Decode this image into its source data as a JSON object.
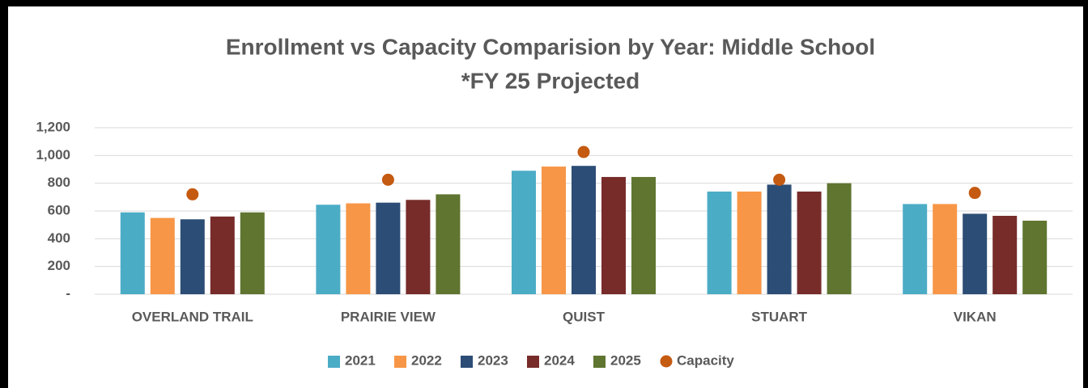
{
  "chart_data": {
    "type": "bar",
    "title": [
      "Enrollment vs Capacity Comparision by Year: Middle School",
      "*FY 25 Projected"
    ],
    "categories": [
      "OVERLAND TRAIL",
      "PRAIRIE VIEW",
      "QUIST",
      "STUART",
      "VIKAN"
    ],
    "series": [
      {
        "name": "2021",
        "color": "#4bacc6",
        "values": [
          590,
          645,
          890,
          740,
          650
        ]
      },
      {
        "name": "2022",
        "color": "#f79646",
        "values": [
          550,
          655,
          920,
          740,
          650
        ]
      },
      {
        "name": "2023",
        "color": "#2c4d75",
        "values": [
          540,
          660,
          925,
          790,
          580
        ]
      },
      {
        "name": "2024",
        "color": "#772c2a",
        "values": [
          560,
          680,
          845,
          740,
          565
        ]
      },
      {
        "name": "2025",
        "color": "#5f7530",
        "values": [
          590,
          720,
          845,
          800,
          530
        ]
      },
      {
        "name": "Capacity",
        "color": "#c55a11",
        "type": "scatter",
        "values": [
          720,
          825,
          1025,
          825,
          730
        ]
      }
    ],
    "ylim": [
      0,
      1200
    ],
    "yticks": [
      {
        "value": 0,
        "label": "-"
      },
      200,
      400,
      600,
      800,
      {
        "value": 1000,
        "label": "1,000"
      },
      {
        "value": 1200,
        "label": "1,200"
      }
    ],
    "grid": true,
    "legend": "bottom"
  }
}
